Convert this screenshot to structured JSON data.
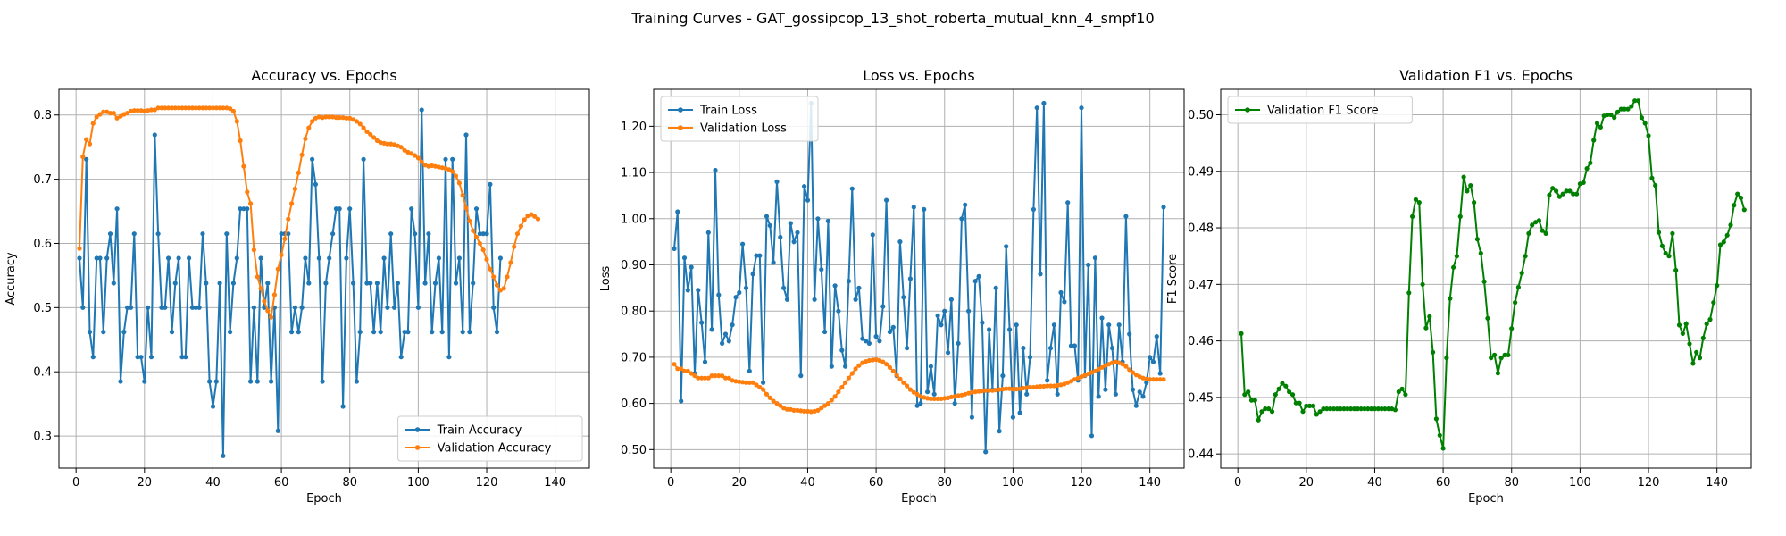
{
  "figure": {
    "suptitle": "Training Curves - GAT_gossipcop_13_shot_roberta_mutual_knn_4_smpf10"
  },
  "colors": {
    "blue": "#1f77b4",
    "orange": "#ff7f0e",
    "green": "#008000",
    "grid": "#b0b0b0"
  },
  "chart_data": [
    {
      "type": "line",
      "title": "Accuracy vs. Epochs",
      "xlabel": "Epoch",
      "ylabel": "Accuracy",
      "xlim": [
        -5,
        150
      ],
      "ylim": [
        0.25,
        0.84
      ],
      "xticks": [
        0,
        20,
        40,
        60,
        80,
        100,
        120,
        140
      ],
      "yticks": [
        0.3,
        0.4,
        0.5,
        0.6,
        0.7,
        0.8
      ],
      "grid": true,
      "legend": "lower-right",
      "series": [
        {
          "name": "Train Accuracy",
          "color": "blue",
          "x_start": 1,
          "values": [
            0.577,
            0.5,
            0.731,
            0.462,
            0.423,
            0.577,
            0.577,
            0.462,
            0.577,
            0.615,
            0.538,
            0.654,
            0.385,
            0.462,
            0.5,
            0.5,
            0.615,
            0.423,
            0.423,
            0.385,
            0.5,
            0.423,
            0.769,
            0.615,
            0.5,
            0.5,
            0.577,
            0.462,
            0.538,
            0.577,
            0.423,
            0.423,
            0.577,
            0.5,
            0.5,
            0.5,
            0.615,
            0.538,
            0.385,
            0.346,
            0.385,
            0.538,
            0.269,
            0.615,
            0.462,
            0.538,
            0.577,
            0.654,
            0.654,
            0.654,
            0.385,
            0.5,
            0.385,
            0.577,
            0.5,
            0.538,
            0.385,
            0.5,
            0.308,
            0.615,
            0.615,
            0.615,
            0.462,
            0.5,
            0.462,
            0.5,
            0.577,
            0.538,
            0.731,
            0.692,
            0.577,
            0.385,
            0.538,
            0.577,
            0.615,
            0.654,
            0.654,
            0.346,
            0.577,
            0.654,
            0.538,
            0.385,
            0.462,
            0.731,
            0.538,
            0.538,
            0.462,
            0.538,
            0.462,
            0.577,
            0.5,
            0.615,
            0.5,
            0.538,
            0.423,
            0.462,
            0.462,
            0.654,
            0.615,
            0.5,
            0.808,
            0.538,
            0.615,
            0.462,
            0.538,
            0.577,
            0.462,
            0.731,
            0.423,
            0.731,
            0.538,
            0.577,
            0.462,
            0.769,
            0.462,
            0.538,
            0.654,
            0.615,
            0.615,
            0.615,
            0.692,
            0.5,
            0.462,
            0.577
          ]
        },
        {
          "name": "Validation Accuracy",
          "color": "orange",
          "x_start": 1,
          "values": [
            0.592,
            0.735,
            0.762,
            0.755,
            0.787,
            0.797,
            0.801,
            0.805,
            0.805,
            0.803,
            0.803,
            0.795,
            0.798,
            0.801,
            0.803,
            0.806,
            0.807,
            0.807,
            0.807,
            0.806,
            0.807,
            0.808,
            0.808,
            0.811,
            0.811,
            0.811,
            0.811,
            0.811,
            0.811,
            0.811,
            0.811,
            0.811,
            0.811,
            0.811,
            0.811,
            0.811,
            0.811,
            0.811,
            0.811,
            0.811,
            0.811,
            0.811,
            0.811,
            0.811,
            0.81,
            0.806,
            0.79,
            0.76,
            0.72,
            0.68,
            0.662,
            0.59,
            0.548,
            0.53,
            0.51,
            0.495,
            0.485,
            0.52,
            0.56,
            0.582,
            0.607,
            0.638,
            0.662,
            0.685,
            0.71,
            0.738,
            0.763,
            0.78,
            0.79,
            0.795,
            0.797,
            0.796,
            0.797,
            0.797,
            0.797,
            0.796,
            0.796,
            0.796,
            0.795,
            0.795,
            0.793,
            0.79,
            0.786,
            0.78,
            0.774,
            0.77,
            0.765,
            0.76,
            0.757,
            0.756,
            0.755,
            0.755,
            0.754,
            0.752,
            0.75,
            0.745,
            0.742,
            0.74,
            0.737,
            0.733,
            0.727,
            0.722,
            0.72,
            0.721,
            0.72,
            0.719,
            0.718,
            0.717,
            0.715,
            0.712,
            0.705,
            0.694,
            0.675,
            0.655,
            0.635,
            0.62,
            0.61,
            0.6,
            0.59,
            0.575,
            0.56,
            0.548,
            0.535,
            0.527,
            0.53,
            0.548,
            0.57,
            0.595,
            0.615,
            0.627,
            0.637,
            0.643,
            0.645,
            0.642,
            0.638
          ]
        }
      ]
    },
    {
      "type": "line",
      "title": "Loss vs. Epochs",
      "xlabel": "Epoch",
      "ylabel": "Loss",
      "xlim": [
        -5,
        150
      ],
      "ylim": [
        0.46,
        1.28
      ],
      "xticks": [
        0,
        20,
        40,
        60,
        80,
        100,
        120,
        140
      ],
      "yticks": [
        0.5,
        0.6,
        0.7,
        0.8,
        0.9,
        1.0,
        1.1,
        1.2
      ],
      "grid": true,
      "legend": "top-left",
      "series": [
        {
          "name": "Train Loss",
          "color": "blue",
          "x_start": 1,
          "values": [
            0.935,
            1.015,
            0.605,
            0.915,
            0.845,
            0.895,
            0.665,
            0.845,
            0.775,
            0.69,
            0.97,
            0.76,
            1.105,
            0.835,
            0.73,
            0.75,
            0.735,
            0.77,
            0.83,
            0.84,
            0.945,
            0.85,
            0.67,
            0.88,
            0.92,
            0.92,
            0.645,
            1.005,
            0.985,
            0.905,
            1.08,
            0.96,
            0.85,
            0.825,
            0.99,
            0.95,
            0.97,
            0.66,
            1.07,
            1.04,
            1.25,
            0.825,
            1.0,
            0.89,
            0.755,
            0.995,
            0.68,
            0.855,
            0.8,
            0.715,
            0.68,
            0.865,
            1.065,
            0.825,
            0.85,
            0.74,
            0.735,
            0.73,
            0.965,
            0.745,
            0.735,
            0.81,
            1.04,
            0.755,
            0.765,
            0.66,
            0.95,
            0.83,
            0.72,
            0.87,
            1.025,
            0.595,
            0.6,
            1.02,
            0.625,
            0.68,
            0.62,
            0.79,
            0.77,
            0.8,
            0.71,
            0.825,
            0.6,
            0.73,
            1.0,
            1.03,
            0.8,
            0.57,
            0.865,
            0.875,
            0.775,
            0.495,
            0.76,
            0.63,
            0.85,
            0.54,
            0.66,
            0.94,
            0.76,
            0.57,
            0.77,
            0.58,
            0.72,
            0.62,
            0.7,
            1.02,
            1.24,
            0.88,
            1.25,
            0.65,
            0.72,
            0.77,
            0.62,
            0.84,
            0.82,
            1.035,
            0.725,
            0.725,
            0.65,
            1.24,
            0.66,
            0.9,
            0.53,
            0.915,
            0.615,
            0.785,
            0.63,
            0.77,
            0.72,
            0.62,
            0.77,
            0.69,
            1.005,
            0.75,
            0.63,
            0.595,
            0.625,
            0.615,
            0.645,
            0.7,
            0.69,
            0.745,
            0.665,
            1.025
          ]
        },
        {
          "name": "Validation Loss",
          "color": "orange",
          "x_start": 1,
          "values": [
            0.685,
            0.675,
            0.675,
            0.67,
            0.67,
            0.665,
            0.66,
            0.655,
            0.655,
            0.655,
            0.655,
            0.66,
            0.66,
            0.66,
            0.66,
            0.655,
            0.655,
            0.65,
            0.648,
            0.647,
            0.646,
            0.645,
            0.645,
            0.645,
            0.64,
            0.635,
            0.63,
            0.62,
            0.612,
            0.605,
            0.6,
            0.595,
            0.59,
            0.587,
            0.587,
            0.585,
            0.585,
            0.584,
            0.583,
            0.583,
            0.582,
            0.583,
            0.585,
            0.59,
            0.595,
            0.6,
            0.607,
            0.615,
            0.625,
            0.635,
            0.645,
            0.655,
            0.665,
            0.675,
            0.682,
            0.688,
            0.691,
            0.693,
            0.694,
            0.695,
            0.693,
            0.69,
            0.685,
            0.678,
            0.67,
            0.662,
            0.653,
            0.645,
            0.638,
            0.63,
            0.624,
            0.62,
            0.615,
            0.613,
            0.611,
            0.61,
            0.61,
            0.61,
            0.61,
            0.611,
            0.612,
            0.614,
            0.615,
            0.617,
            0.618,
            0.62,
            0.622,
            0.624,
            0.625,
            0.626,
            0.627,
            0.628,
            0.628,
            0.628,
            0.629,
            0.63,
            0.631,
            0.632,
            0.632,
            0.631,
            0.631,
            0.632,
            0.633,
            0.634,
            0.635,
            0.635,
            0.636,
            0.637,
            0.637,
            0.638,
            0.638,
            0.638,
            0.639,
            0.64,
            0.642,
            0.645,
            0.648,
            0.652,
            0.655,
            0.658,
            0.661,
            0.664,
            0.667,
            0.67,
            0.674,
            0.678,
            0.682,
            0.685,
            0.688,
            0.69,
            0.688,
            0.685,
            0.68,
            0.673,
            0.667,
            0.662,
            0.658,
            0.655,
            0.653,
            0.652,
            0.652,
            0.652,
            0.652,
            0.652
          ]
        }
      ]
    },
    {
      "type": "line",
      "title": "Validation F1 vs. Epochs",
      "xlabel": "Epoch",
      "ylabel": "F1 Score",
      "xlim": [
        -5,
        150
      ],
      "ylim": [
        0.4375,
        0.5045
      ],
      "xticks": [
        0,
        20,
        40,
        60,
        80,
        100,
        120,
        140
      ],
      "yticks": [
        0.44,
        0.45,
        0.46,
        0.47,
        0.48,
        0.49,
        0.5
      ],
      "grid": true,
      "legend": "top-left",
      "series": [
        {
          "name": "Validation F1 Score",
          "color": "green",
          "x_start": 1,
          "values": [
            0.4613,
            0.4505,
            0.451,
            0.4495,
            0.4495,
            0.446,
            0.4475,
            0.448,
            0.448,
            0.4475,
            0.4505,
            0.4515,
            0.4525,
            0.452,
            0.451,
            0.4505,
            0.449,
            0.449,
            0.4475,
            0.4485,
            0.4485,
            0.4485,
            0.447,
            0.4475,
            0.448,
            0.448,
            0.448,
            0.448,
            0.448,
            0.448,
            0.448,
            0.448,
            0.448,
            0.448,
            0.448,
            0.448,
            0.448,
            0.448,
            0.448,
            0.448,
            0.448,
            0.448,
            0.448,
            0.448,
            0.448,
            0.4478,
            0.451,
            0.4515,
            0.4505,
            0.4685,
            0.482,
            0.485,
            0.4845,
            0.47,
            0.4623,
            0.4643,
            0.458,
            0.4462,
            0.4433,
            0.441,
            0.457,
            0.4675,
            0.473,
            0.475,
            0.482,
            0.489,
            0.4865,
            0.4875,
            0.4845,
            0.478,
            0.4755,
            0.4705,
            0.464,
            0.457,
            0.4575,
            0.4543,
            0.457,
            0.4575,
            0.4575,
            0.4622,
            0.4668,
            0.4695,
            0.472,
            0.475,
            0.479,
            0.4805,
            0.481,
            0.4813,
            0.4795,
            0.479,
            0.4858,
            0.487,
            0.4865,
            0.4855,
            0.486,
            0.4865,
            0.4865,
            0.486,
            0.486,
            0.4878,
            0.488,
            0.4905,
            0.4915,
            0.4955,
            0.4985,
            0.4978,
            0.4998,
            0.5,
            0.5,
            0.4995,
            0.5005,
            0.501,
            0.501,
            0.501,
            0.5015,
            0.5025,
            0.5025,
            0.4995,
            0.4985,
            0.4963,
            0.4888,
            0.4875,
            0.4792,
            0.4768,
            0.4755,
            0.475,
            0.479,
            0.4725,
            0.4628,
            0.4613,
            0.463,
            0.4595,
            0.456,
            0.458,
            0.457,
            0.4605,
            0.463,
            0.4638,
            0.4668,
            0.4698,
            0.477,
            0.4775,
            0.4787,
            0.4805,
            0.484,
            0.486,
            0.4853,
            0.4832
          ]
        }
      ]
    }
  ]
}
